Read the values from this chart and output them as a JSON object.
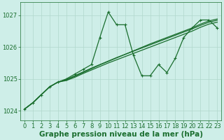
{
  "background_color": "#ceeee8",
  "grid_color": "#b0d8cc",
  "line_color": "#1a6e2e",
  "xlabel": "Graphe pression niveau de la mer (hPa)",
  "ylim": [
    1023.7,
    1027.4
  ],
  "xlim": [
    -0.5,
    23.5
  ],
  "yticks": [
    1024,
    1025,
    1026,
    1027
  ],
  "xticks": [
    0,
    1,
    2,
    3,
    4,
    5,
    6,
    7,
    8,
    9,
    10,
    11,
    12,
    13,
    14,
    15,
    16,
    17,
    18,
    19,
    20,
    21,
    22,
    23
  ],
  "series": [
    {
      "y": [
        1024.05,
        1024.25,
        1024.5,
        1024.75,
        1024.9,
        1025.0,
        1025.15,
        1025.3,
        1025.45,
        1026.3,
        1027.1,
        1026.7,
        1026.7,
        1025.75,
        1025.1,
        1025.1,
        1025.45,
        1025.2,
        1025.65,
        1026.3,
        1026.6,
        1026.85,
        1026.85,
        1026.6
      ],
      "marker": true
    },
    {
      "y": [
        1024.05,
        1024.25,
        1024.5,
        1024.75,
        1024.9,
        1024.97,
        1025.08,
        1025.2,
        1025.32,
        1025.44,
        1025.55,
        1025.66,
        1025.77,
        1025.88,
        1025.99,
        1026.1,
        1026.2,
        1026.3,
        1026.4,
        1026.5,
        1026.6,
        1026.72,
        1026.82,
        1026.88
      ],
      "marker": false
    },
    {
      "y": [
        1024.05,
        1024.25,
        1024.5,
        1024.75,
        1024.9,
        1024.95,
        1025.05,
        1025.17,
        1025.28,
        1025.39,
        1025.5,
        1025.6,
        1025.7,
        1025.8,
        1025.9,
        1026.0,
        1026.1,
        1026.2,
        1026.3,
        1026.4,
        1026.5,
        1026.62,
        1026.72,
        1026.78
      ],
      "marker": false
    },
    {
      "y": [
        1024.05,
        1024.25,
        1024.5,
        1024.75,
        1024.9,
        1024.98,
        1025.1,
        1025.22,
        1025.34,
        1025.45,
        1025.56,
        1025.67,
        1025.77,
        1025.87,
        1025.97,
        1026.07,
        1026.17,
        1026.27,
        1026.37,
        1026.47,
        1026.57,
        1026.68,
        1026.78,
        1026.84
      ],
      "marker": false
    }
  ],
  "marker_style": "+",
  "markersize": 3.5,
  "linewidth": 0.9,
  "xlabel_fontsize": 7.5,
  "tick_fontsize": 6.0,
  "tick_color": "#1a6e2e",
  "xlabel_color": "#1a6e2e",
  "xlabel_fontweight": "bold"
}
